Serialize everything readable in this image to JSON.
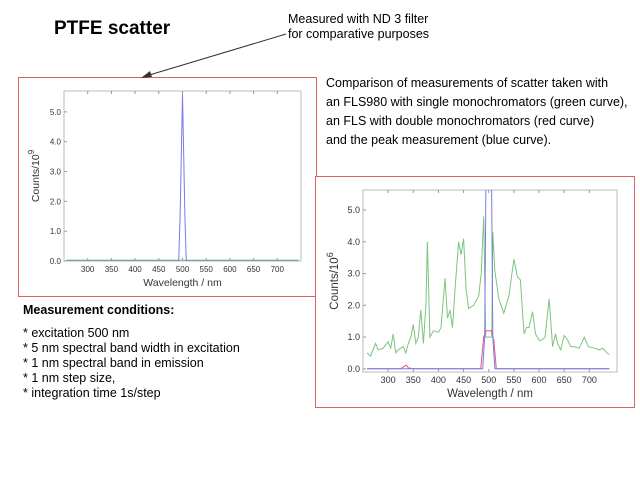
{
  "title": "PTFE scatter",
  "annotation": {
    "lines": [
      "Measured with ND 3 filter",
      "for comparative purposes"
    ]
  },
  "description": {
    "lines": [
      "Comparison of measurements of scatter taken with",
      "an FLS980 with single monochromators (green curve),",
      "an FLS with double monochromators (red curve)",
      "and the peak measurement  (blue curve)."
    ]
  },
  "conditions": {
    "heading": "Measurement conditions:",
    "items": [
      "* excitation 500 nm",
      "* 5 nm spectral band width in excitation",
      "* 1 nm spectral band in emission",
      "* 1 nm step size,",
      "* integration time 1s/step"
    ]
  },
  "colors": {
    "green": "#7dc47d",
    "red": "#e05a7a",
    "blue": "#7a7ae8",
    "frame": "#e06060"
  },
  "chart_data": [
    {
      "type": "line",
      "xlabel": "Wavelength / nm",
      "ylabel": "Counts/10",
      "ylabel_exp": "9",
      "xlim": [
        250,
        750
      ],
      "ylim": [
        0,
        5.7
      ],
      "xticks": [
        300,
        350,
        400,
        450,
        500,
        550,
        600,
        650,
        700
      ],
      "yticks": [
        "0.0",
        "1.0",
        "2.0",
        "3.0",
        "4.0",
        "5.0"
      ],
      "grid": false,
      "series": [
        {
          "color": "green",
          "x": [
            255,
            745
          ],
          "y": [
            0.03,
            0.03
          ]
        },
        {
          "color": "blue",
          "x": [
            255,
            492,
            495,
            500,
            505,
            508,
            745
          ],
          "y": [
            0,
            0,
            1.5,
            5.6,
            1.5,
            0,
            0
          ]
        }
      ]
    },
    {
      "type": "line",
      "xlabel": "Wavelength / nm",
      "ylabel": "Counts/10",
      "ylabel_exp": "6",
      "xlim": [
        250,
        755
      ],
      "ylim": [
        -0.1,
        5.63
      ],
      "xticks": [
        300,
        350,
        400,
        450,
        500,
        550,
        600,
        650,
        700
      ],
      "yticks": [
        "0.0",
        "1.0",
        "2.0",
        "3.0",
        "4.0",
        "5.0"
      ],
      "grid": false,
      "series": [
        {
          "color": "green",
          "x": [
            258,
            265,
            275,
            280,
            290,
            300,
            305,
            310,
            315,
            320,
            330,
            335,
            340,
            345,
            350,
            355,
            360,
            365,
            370,
            375,
            378,
            383,
            390,
            400,
            405,
            413,
            418,
            423,
            428,
            433,
            440,
            445,
            450,
            455,
            460,
            470,
            480,
            485,
            490,
            494,
            506,
            508,
            512,
            520,
            530,
            540,
            550,
            557,
            563,
            570,
            575,
            580,
            587,
            593,
            600,
            605,
            612,
            620,
            627,
            633,
            637,
            643,
            650,
            657,
            663,
            670,
            680,
            690,
            698,
            710,
            720,
            727,
            735,
            740
          ],
          "y": [
            0.5,
            0.4,
            0.8,
            0.6,
            0.65,
            0.85,
            0.65,
            1.1,
            0.5,
            0.6,
            0.7,
            0.5,
            0.8,
            1.0,
            1.4,
            0.8,
            1.0,
            1.85,
            0.8,
            2.0,
            4.0,
            1.0,
            1.2,
            1.15,
            1.3,
            2.85,
            1.6,
            1.85,
            1.3,
            2.5,
            4.0,
            3.6,
            4.1,
            2.5,
            1.9,
            2.0,
            2.3,
            3.0,
            4.8,
            1.0,
            1.0,
            4.3,
            3.1,
            2.2,
            1.75,
            2.3,
            3.45,
            2.9,
            2.8,
            1.1,
            1.3,
            1.3,
            1.8,
            1.1,
            0.9,
            0.9,
            1.0,
            2.2,
            0.7,
            1.1,
            0.8,
            0.6,
            1.05,
            0.9,
            0.7,
            0.7,
            0.65,
            1.0,
            0.7,
            0.65,
            0.6,
            0.65,
            0.5,
            0.45
          ]
        },
        {
          "color": "red",
          "x": [
            258,
            325,
            332,
            336,
            340,
            350,
            484,
            490,
            495,
            505,
            510,
            515,
            740
          ],
          "y": [
            0,
            0,
            0.08,
            0.12,
            0.03,
            0,
            0,
            1.0,
            1.2,
            1.2,
            0.9,
            0,
            0
          ]
        },
        {
          "color": "blue",
          "x": [
            258,
            488,
            492,
            495,
            505,
            508,
            512,
            740
          ],
          "y": [
            0,
            0,
            1.0,
            7,
            7,
            1.0,
            0,
            0
          ]
        }
      ]
    }
  ]
}
